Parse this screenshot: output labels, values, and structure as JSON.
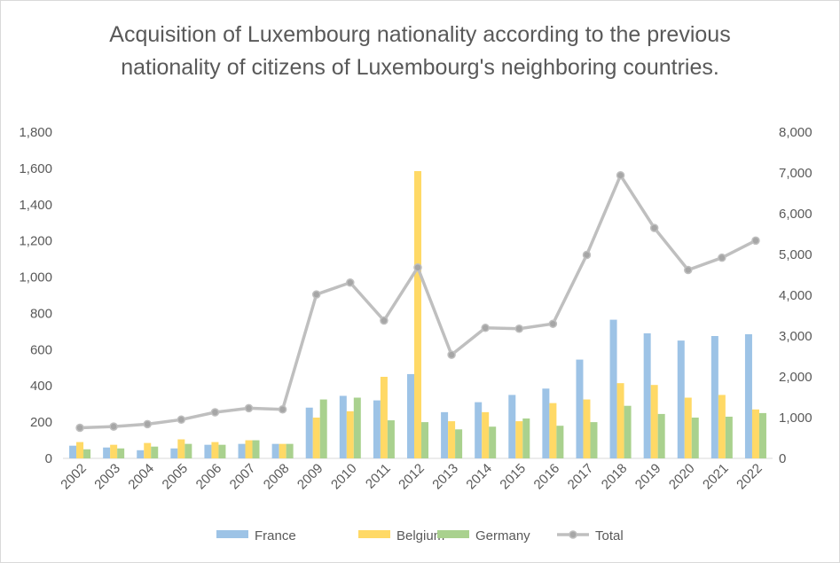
{
  "chart_data": {
    "type": "bar",
    "title": "Acquisition of Luxembourg nationality according to the previous nationality of citizens of Luxembourg's neighboring countries.",
    "categories": [
      "2002",
      "2003",
      "2004",
      "2005",
      "2006",
      "2007",
      "2008",
      "2009",
      "2010",
      "2011",
      "2012",
      "2013",
      "2014",
      "2015",
      "2016",
      "2017",
      "2018",
      "2019",
      "2020",
      "2021",
      "2022"
    ],
    "series": [
      {
        "name": "France",
        "type": "bar",
        "axis": "left",
        "color": "#9dc3e6",
        "values": [
          70,
          60,
          45,
          55,
          75,
          80,
          80,
          280,
          345,
          320,
          465,
          255,
          310,
          350,
          385,
          545,
          765,
          690,
          650,
          675,
          685
        ]
      },
      {
        "name": "Belgium",
        "type": "bar",
        "axis": "left",
        "color": "#ffd966",
        "values": [
          90,
          75,
          85,
          105,
          90,
          100,
          80,
          225,
          260,
          450,
          1585,
          205,
          255,
          205,
          305,
          325,
          415,
          405,
          335,
          350,
          270
        ]
      },
      {
        "name": "Germany",
        "type": "bar",
        "axis": "left",
        "color": "#a9d18e",
        "values": [
          50,
          55,
          65,
          80,
          75,
          100,
          80,
          325,
          335,
          210,
          200,
          160,
          175,
          220,
          180,
          200,
          290,
          245,
          225,
          230,
          250
        ]
      },
      {
        "name": "Total",
        "type": "line",
        "axis": "right",
        "color": "#bfbfbf",
        "values": [
          750,
          780,
          840,
          950,
          1130,
          1230,
          1200,
          4020,
          4310,
          3380,
          4680,
          2540,
          3200,
          3180,
          3300,
          4990,
          6940,
          5650,
          4620,
          4920,
          5340
        ]
      }
    ],
    "yaxis_left": {
      "min": 0,
      "max": 1800,
      "step": 200,
      "tick_labels": [
        "0",
        "200",
        "400",
        "600",
        "800",
        "1,000",
        "1,200",
        "1,400",
        "1,600",
        "1,800"
      ]
    },
    "yaxis_right": {
      "min": 0,
      "max": 8000,
      "step": 1000,
      "tick_labels": [
        "0",
        "1,000",
        "2,000",
        "3,000",
        "4,000",
        "5,000",
        "6,000",
        "7,000",
        "8,000"
      ]
    },
    "grid": false,
    "legend": "bottom"
  }
}
